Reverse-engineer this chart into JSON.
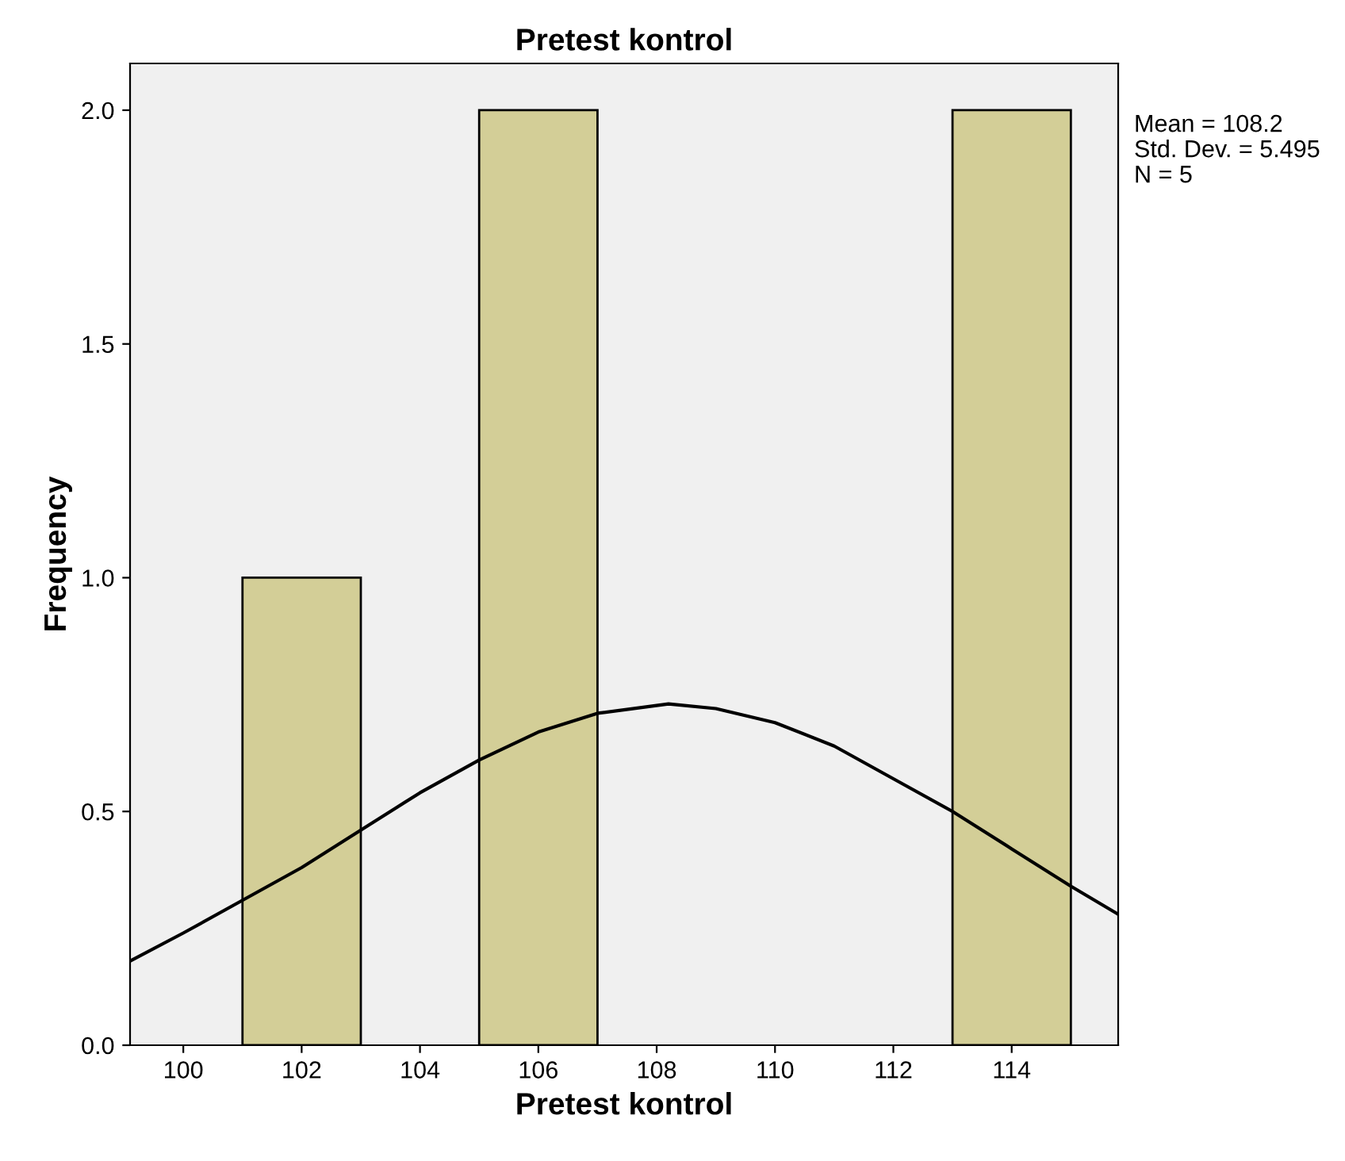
{
  "chart_data": {
    "type": "histogram",
    "title": "Pretest kontrol",
    "xlabel": "Pretest kontrol",
    "ylabel": "Frequency",
    "bins": [
      101,
      103,
      105,
      107,
      109,
      111,
      113,
      115
    ],
    "values": [
      1,
      0,
      2,
      0,
      0,
      0,
      2
    ],
    "color": "#d3ce97",
    "series": [
      {
        "type": "line",
        "color": "#000000",
        "x": [
          99.1,
          100,
          101,
          102,
          103,
          104,
          105,
          106,
          107,
          108.2,
          109,
          110,
          111,
          112,
          113,
          114,
          115,
          115.8
        ],
        "values": [
          0.18,
          0.24,
          0.31,
          0.38,
          0.46,
          0.54,
          0.61,
          0.67,
          0.71,
          0.73,
          0.72,
          0.69,
          0.64,
          0.57,
          0.5,
          0.42,
          0.34,
          0.28
        ]
      }
    ],
    "xlim": [
      99.1,
      115.8
    ],
    "xticks": [
      100,
      102,
      104,
      106,
      108,
      110,
      112,
      114
    ],
    "ylim": [
      0,
      2.1
    ],
    "yticks": [
      {
        "value": 0,
        "label": "0.0"
      },
      {
        "value": 0.5,
        "label": "0.5"
      },
      {
        "value": 1,
        "label": "1.0"
      },
      {
        "value": 1.5,
        "label": "1.5"
      },
      {
        "value": 2,
        "label": "2.0"
      }
    ],
    "annotations": [
      "Mean = 108.2",
      "Std. Dev. = 5.495",
      "N = 5"
    ]
  }
}
